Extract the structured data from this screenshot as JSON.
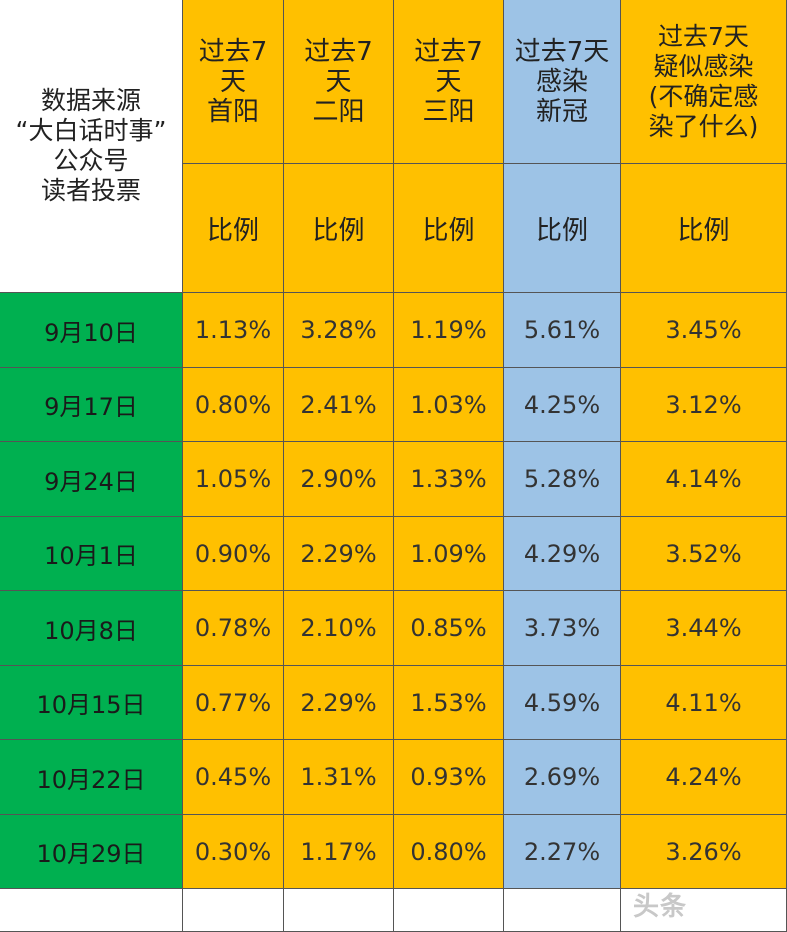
{
  "source_label": "数据来源\n“大白话时事”\n公众号\n读者投票",
  "columns": [
    {
      "header": "过去7\n天\n首阳",
      "subheader": "比例",
      "color": "#FFC000"
    },
    {
      "header": "过去7\n天\n二阳",
      "subheader": "比例",
      "color": "#FFC000"
    },
    {
      "header": "过去7\n天\n三阳",
      "subheader": "比例",
      "color": "#FFC000"
    },
    {
      "header": "过去7天\n感染\n新冠",
      "subheader": "比例",
      "color": "#9DC3E6"
    },
    {
      "header": "过去7天\n疑似感染\n(不确定感\n染了什么)",
      "subheader": "比例",
      "color": "#FFC000"
    }
  ],
  "date_color": "#00B050",
  "rows": [
    {
      "date": "9月10日",
      "values": [
        "1.13%",
        "3.28%",
        "1.19%",
        "5.61%",
        "3.45%"
      ]
    },
    {
      "date": "9月17日",
      "values": [
        "0.80%",
        "2.41%",
        "1.03%",
        "4.25%",
        "3.12%"
      ]
    },
    {
      "date": "9月24日",
      "values": [
        "1.05%",
        "2.90%",
        "1.33%",
        "5.28%",
        "4.14%"
      ]
    },
    {
      "date": "10月1日",
      "values": [
        "0.90%",
        "2.29%",
        "1.09%",
        "4.29%",
        "3.52%"
      ]
    },
    {
      "date": "10月8日",
      "values": [
        "0.78%",
        "2.10%",
        "0.85%",
        "3.73%",
        "3.44%"
      ]
    },
    {
      "date": "10月15日",
      "values": [
        "0.77%",
        "2.29%",
        "1.53%",
        "4.59%",
        "4.11%"
      ]
    },
    {
      "date": "10月22日",
      "values": [
        "0.45%",
        "1.31%",
        "0.93%",
        "2.69%",
        "4.24%"
      ]
    },
    {
      "date": "10月29日",
      "values": [
        "0.30%",
        "1.17%",
        "0.80%",
        "2.27%",
        "3.26%"
      ]
    }
  ],
  "watermark": "头条"
}
